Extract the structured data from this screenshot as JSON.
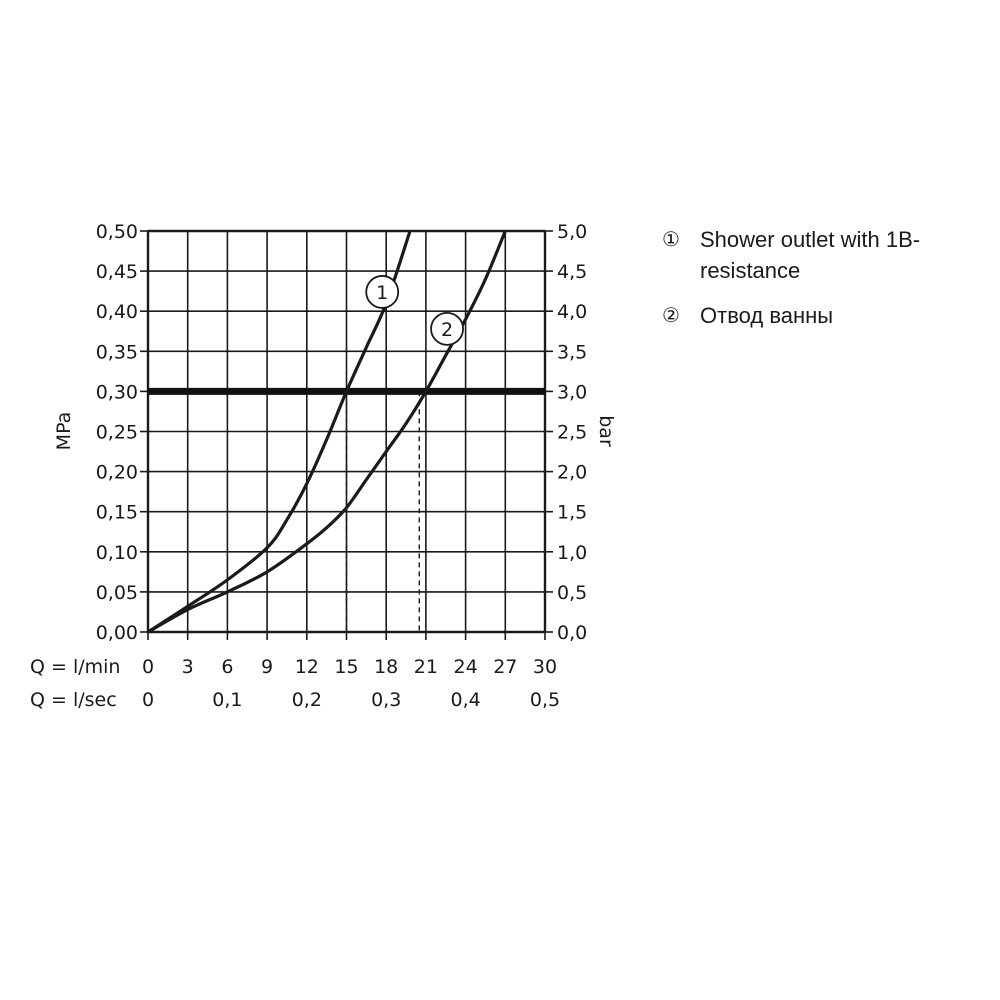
{
  "chart_data": {
    "type": "line",
    "left_axis": {
      "label": "MPa",
      "ylim": [
        0,
        0.5
      ],
      "ticks": [
        "0,00",
        "0,05",
        "0,10",
        "0,15",
        "0,20",
        "0,25",
        "0,30",
        "0,35",
        "0,40",
        "0,45",
        "0,50"
      ]
    },
    "right_axis": {
      "label": "bar",
      "ylim": [
        0,
        5
      ],
      "ticks": [
        "0,0",
        "0,5",
        "1,0",
        "1,5",
        "2,0",
        "2,5",
        "3,0",
        "3,5",
        "4,0",
        "4,5",
        "5,0"
      ]
    },
    "x_axis_lmin": {
      "label": "Q = l/min",
      "xlim": [
        0,
        30
      ],
      "ticks": [
        {
          "value": 0,
          "label": "0"
        },
        {
          "value": 3,
          "label": "3"
        },
        {
          "value": 6,
          "label": "6"
        },
        {
          "value": 9,
          "label": "9"
        },
        {
          "value": 12,
          "label": "12"
        },
        {
          "value": 15,
          "label": "15"
        },
        {
          "value": 18,
          "label": "18"
        },
        {
          "value": 21,
          "label": "21"
        },
        {
          "value": 24,
          "label": "24"
        },
        {
          "value": 27,
          "label": "27"
        },
        {
          "value": 30,
          "label": "30"
        }
      ]
    },
    "x_axis_lsec": {
      "label": "Q = l/sec",
      "ticks": [
        {
          "value": 0,
          "label": "0"
        },
        {
          "value": 6,
          "label": "0,1"
        },
        {
          "value": 12,
          "label": "0,2"
        },
        {
          "value": 18,
          "label": "0,3"
        },
        {
          "value": 24,
          "label": "0,4"
        },
        {
          "value": 30,
          "label": "0,5"
        }
      ]
    },
    "grid": true,
    "reference_line": {
      "y": 0.3
    },
    "dashed_markers": [
      15,
      20.5
    ],
    "series": [
      {
        "name": "1",
        "x": [
          0,
          3,
          6,
          9,
          10.5,
          12,
          13.5,
          15,
          16.5,
          18,
          19.8
        ],
        "y": [
          0,
          0.032,
          0.065,
          0.105,
          0.14,
          0.185,
          0.24,
          0.3,
          0.355,
          0.41,
          0.5
        ],
        "marker_label": "1",
        "marker_at": [
          17.7,
          0.424
        ]
      },
      {
        "name": "2",
        "x": [
          0,
          3,
          6,
          9,
          12,
          13.5,
          15,
          16.5,
          18,
          19.5,
          21,
          22.5,
          24,
          25.5,
          27
        ],
        "y": [
          0,
          0.028,
          0.05,
          0.075,
          0.11,
          0.13,
          0.155,
          0.19,
          0.225,
          0.26,
          0.3,
          0.345,
          0.39,
          0.44,
          0.5
        ],
        "marker_label": "2",
        "marker_at": [
          22.6,
          0.378
        ]
      }
    ],
    "legend": {
      "position": "right",
      "items": [
        {
          "marker": "①",
          "text": "Shower outlet with 1B-resistance"
        },
        {
          "marker": "②",
          "text": "Отвод ванны"
        }
      ]
    }
  }
}
